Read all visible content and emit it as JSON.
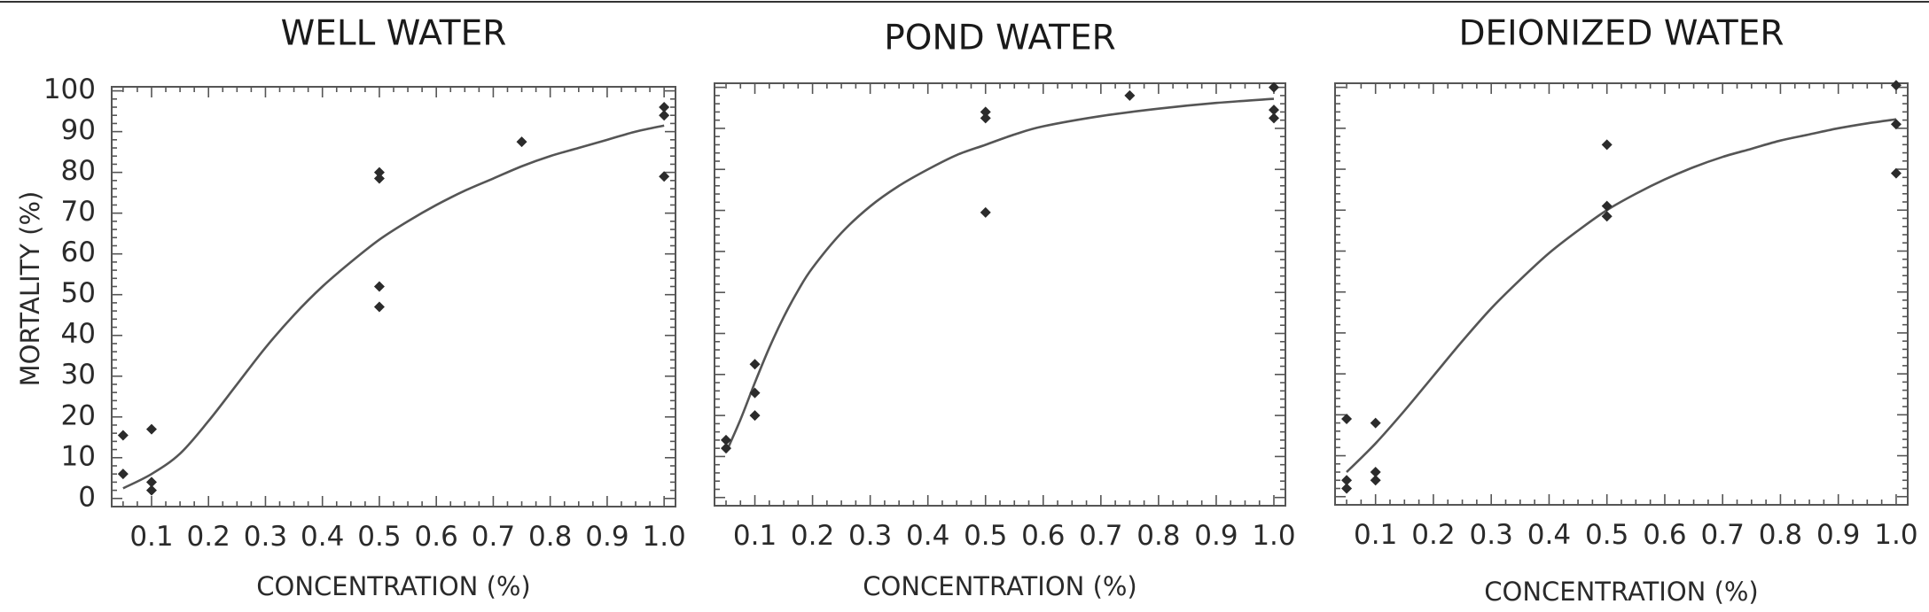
{
  "figure": {
    "ylabel": "MORTALITY (%)"
  },
  "chart_data": [
    {
      "type": "scatter",
      "title": "WELL WATER",
      "xlabel": "CONCENTRATION (%)",
      "ylabel": "MORTALITY (%)",
      "xlim": [
        0.03,
        1.02
      ],
      "ylim": [
        -2,
        101
      ],
      "xticks": [
        "0.1",
        "0.2",
        "0.3",
        "0.4",
        "0.5",
        "0.6",
        "0.7",
        "0.8",
        "0.9",
        "1.0"
      ],
      "yticks": [
        "0",
        "10",
        "20",
        "30",
        "40",
        "50",
        "60",
        "70",
        "80",
        "90",
        "100"
      ],
      "points": [
        {
          "x": 0.05,
          "y": 15.5
        },
        {
          "x": 0.05,
          "y": 6
        },
        {
          "x": 0.1,
          "y": 17
        },
        {
          "x": 0.1,
          "y": 4
        },
        {
          "x": 0.1,
          "y": 2
        },
        {
          "x": 0.5,
          "y": 80
        },
        {
          "x": 0.5,
          "y": 78.5
        },
        {
          "x": 0.5,
          "y": 52
        },
        {
          "x": 0.5,
          "y": 47
        },
        {
          "x": 0.75,
          "y": 87.5
        },
        {
          "x": 1.0,
          "y": 96
        },
        {
          "x": 1.0,
          "y": 94
        },
        {
          "x": 1.0,
          "y": 79
        }
      ],
      "fit_curve": [
        {
          "x": 0.05,
          "y": 2.5
        },
        {
          "x": 0.1,
          "y": 6
        },
        {
          "x": 0.15,
          "y": 11
        },
        {
          "x": 0.2,
          "y": 19
        },
        {
          "x": 0.25,
          "y": 28
        },
        {
          "x": 0.3,
          "y": 37
        },
        {
          "x": 0.35,
          "y": 45
        },
        {
          "x": 0.4,
          "y": 52
        },
        {
          "x": 0.45,
          "y": 58
        },
        {
          "x": 0.5,
          "y": 63.5
        },
        {
          "x": 0.55,
          "y": 68
        },
        {
          "x": 0.6,
          "y": 72
        },
        {
          "x": 0.65,
          "y": 75.5
        },
        {
          "x": 0.7,
          "y": 78.5
        },
        {
          "x": 0.75,
          "y": 81.5
        },
        {
          "x": 0.8,
          "y": 84
        },
        {
          "x": 0.85,
          "y": 86
        },
        {
          "x": 0.9,
          "y": 88
        },
        {
          "x": 0.95,
          "y": 90
        },
        {
          "x": 1.0,
          "y": 91.5
        }
      ]
    },
    {
      "type": "scatter",
      "title": "POND WATER",
      "xlabel": "CONCENTRATION (%)",
      "ylabel": "",
      "xlim": [
        0.03,
        1.02
      ],
      "ylim": [
        -2,
        101
      ],
      "xticks": [
        "0.1",
        "0.2",
        "0.3",
        "0.4",
        "0.5",
        "0.6",
        "0.7",
        "0.8",
        "0.9",
        "1.0"
      ],
      "yticks": [],
      "points": [
        {
          "x": 0.05,
          "y": 14
        },
        {
          "x": 0.05,
          "y": 12
        },
        {
          "x": 0.1,
          "y": 32.5
        },
        {
          "x": 0.1,
          "y": 25.5
        },
        {
          "x": 0.1,
          "y": 20
        },
        {
          "x": 0.5,
          "y": 94
        },
        {
          "x": 0.5,
          "y": 92.5
        },
        {
          "x": 0.5,
          "y": 69.5
        },
        {
          "x": 0.75,
          "y": 98
        },
        {
          "x": 1.0,
          "y": 100
        },
        {
          "x": 1.0,
          "y": 94.5
        },
        {
          "x": 1.0,
          "y": 92.5
        }
      ],
      "fit_curve": [
        {
          "x": 0.05,
          "y": 11
        },
        {
          "x": 0.075,
          "y": 19
        },
        {
          "x": 0.1,
          "y": 28
        },
        {
          "x": 0.125,
          "y": 36.5
        },
        {
          "x": 0.15,
          "y": 44
        },
        {
          "x": 0.175,
          "y": 50.5
        },
        {
          "x": 0.2,
          "y": 56
        },
        {
          "x": 0.25,
          "y": 64.5
        },
        {
          "x": 0.3,
          "y": 71
        },
        {
          "x": 0.35,
          "y": 76
        },
        {
          "x": 0.4,
          "y": 80
        },
        {
          "x": 0.45,
          "y": 83.5
        },
        {
          "x": 0.5,
          "y": 86
        },
        {
          "x": 0.55,
          "y": 88.5
        },
        {
          "x": 0.6,
          "y": 90.5
        },
        {
          "x": 0.7,
          "y": 93
        },
        {
          "x": 0.8,
          "y": 94.8
        },
        {
          "x": 0.9,
          "y": 96.2
        },
        {
          "x": 1.0,
          "y": 97.2
        }
      ]
    },
    {
      "type": "scatter",
      "title": "DEIONIZED WATER",
      "xlabel": "CONCENTRATION (%)",
      "ylabel": "",
      "xlim": [
        0.03,
        1.02
      ],
      "ylim": [
        -2,
        101
      ],
      "xticks": [
        "0.1",
        "0.2",
        "0.3",
        "0.4",
        "0.5",
        "0.6",
        "0.7",
        "0.8",
        "0.9",
        "1.0"
      ],
      "yticks": [],
      "points": [
        {
          "x": 0.05,
          "y": 19
        },
        {
          "x": 0.05,
          "y": 4
        },
        {
          "x": 0.05,
          "y": 2
        },
        {
          "x": 0.1,
          "y": 18
        },
        {
          "x": 0.1,
          "y": 6
        },
        {
          "x": 0.1,
          "y": 4
        },
        {
          "x": 0.5,
          "y": 86
        },
        {
          "x": 0.5,
          "y": 71
        },
        {
          "x": 0.5,
          "y": 68.5
        },
        {
          "x": 1.0,
          "y": 100.5
        },
        {
          "x": 1.0,
          "y": 91
        },
        {
          "x": 1.0,
          "y": 79
        }
      ],
      "fit_curve": [
        {
          "x": 0.05,
          "y": 6
        },
        {
          "x": 0.1,
          "y": 13
        },
        {
          "x": 0.15,
          "y": 21
        },
        {
          "x": 0.2,
          "y": 29.5
        },
        {
          "x": 0.25,
          "y": 38
        },
        {
          "x": 0.3,
          "y": 46
        },
        {
          "x": 0.35,
          "y": 53
        },
        {
          "x": 0.4,
          "y": 59.5
        },
        {
          "x": 0.45,
          "y": 65
        },
        {
          "x": 0.5,
          "y": 70
        },
        {
          "x": 0.55,
          "y": 74
        },
        {
          "x": 0.6,
          "y": 77.5
        },
        {
          "x": 0.65,
          "y": 80.5
        },
        {
          "x": 0.7,
          "y": 83
        },
        {
          "x": 0.75,
          "y": 85
        },
        {
          "x": 0.8,
          "y": 87
        },
        {
          "x": 0.85,
          "y": 88.5
        },
        {
          "x": 0.9,
          "y": 90
        },
        {
          "x": 0.95,
          "y": 91.2
        },
        {
          "x": 1.0,
          "y": 92.2
        }
      ]
    }
  ]
}
